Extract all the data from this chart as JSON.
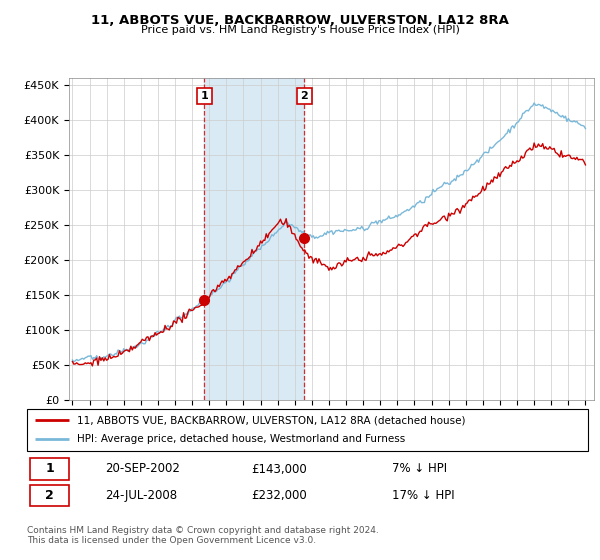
{
  "title": "11, ABBOTS VUE, BACKBARROW, ULVERSTON, LA12 8RA",
  "subtitle": "Price paid vs. HM Land Registry's House Price Index (HPI)",
  "ylim": [
    0,
    460000
  ],
  "yticks": [
    0,
    50000,
    100000,
    150000,
    200000,
    250000,
    300000,
    350000,
    400000,
    450000
  ],
  "ytick_labels": [
    "£0",
    "£50K",
    "£100K",
    "£150K",
    "£200K",
    "£250K",
    "£300K",
    "£350K",
    "£400K",
    "£450K"
  ],
  "xlim_start": 1994.8,
  "xlim_end": 2025.5,
  "sale1_x": 2002.72,
  "sale1_y": 143000,
  "sale2_x": 2008.56,
  "sale2_y": 232000,
  "hpi_color": "#7ab8d9",
  "sale_color": "#cc0000",
  "shading_color": "#daeaf5",
  "legend_house_label": "11, ABBOTS VUE, BACKBARROW, ULVERSTON, LA12 8RA (detached house)",
  "legend_hpi_label": "HPI: Average price, detached house, Westmorland and Furness",
  "sale1_date": "20-SEP-2002",
  "sale1_price": "£143,000",
  "sale1_hpi": "7% ↓ HPI",
  "sale2_date": "24-JUL-2008",
  "sale2_price": "£232,000",
  "sale2_hpi": "17% ↓ HPI",
  "footer1": "Contains HM Land Registry data © Crown copyright and database right 2024.",
  "footer2": "This data is licensed under the Open Government Licence v3.0."
}
